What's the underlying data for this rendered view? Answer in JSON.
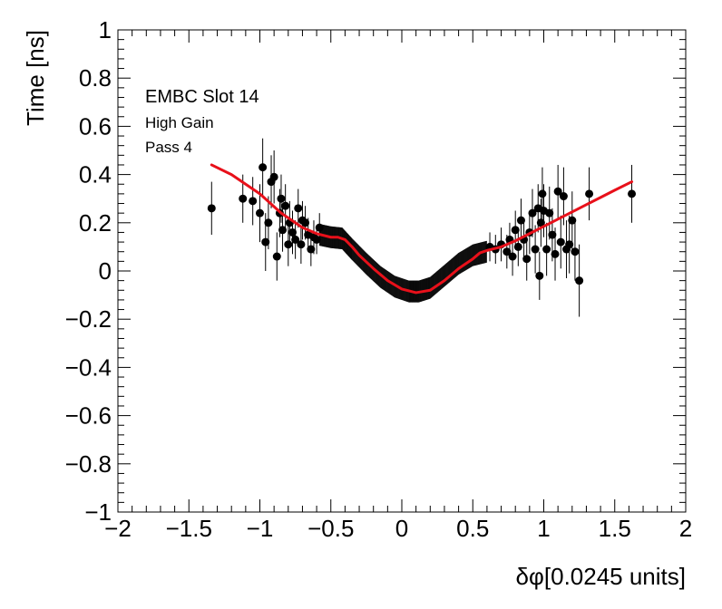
{
  "chart_data": {
    "type": "scatter",
    "title": "",
    "xlabel": "δφ[0.0245 units]",
    "ylabel": "Time [ns]",
    "xlim": [
      -2,
      2
    ],
    "ylim": [
      -1,
      1
    ],
    "x_ticks": [
      -2,
      -1.5,
      -1,
      -0.5,
      0,
      0.5,
      1,
      1.5,
      2
    ],
    "x_tick_labels": [
      "−2",
      "−1.5",
      "−1",
      "−0.5",
      "0",
      "0.5",
      "1",
      "1.5",
      "2"
    ],
    "y_ticks": [
      -1,
      -0.8,
      -0.6,
      -0.4,
      -0.2,
      0,
      0.2,
      0.4,
      0.6,
      0.8,
      1
    ],
    "y_tick_labels": [
      "−1",
      "−0.8",
      "−0.6",
      "−0.4",
      "−0.2",
      "0",
      "0.2",
      "0.4",
      "0.6",
      "0.8",
      "1"
    ],
    "grid": false,
    "annotations": [
      "EMBC Slot 14",
      "High Gain",
      "Pass 4"
    ],
    "colors": {
      "points": "#000000",
      "fit": "#e8101a",
      "frame": "#000000"
    },
    "series": [
      {
        "type": "scatter_errorbars",
        "points": [
          {
            "x": -1.34,
            "y": 0.26,
            "err": 0.11
          },
          {
            "x": -1.12,
            "y": 0.3,
            "err": 0.1
          },
          {
            "x": -1.05,
            "y": 0.29,
            "err": 0.1
          },
          {
            "x": -1.0,
            "y": 0.24,
            "err": 0.12
          },
          {
            "x": -0.98,
            "y": 0.43,
            "err": 0.12
          },
          {
            "x": -0.96,
            "y": 0.12,
            "err": 0.12
          },
          {
            "x": -0.94,
            "y": 0.2,
            "err": 0.11
          },
          {
            "x": -0.92,
            "y": 0.37,
            "err": 0.11
          },
          {
            "x": -0.9,
            "y": 0.39,
            "err": 0.11
          },
          {
            "x": -0.88,
            "y": 0.06,
            "err": 0.1
          },
          {
            "x": -0.86,
            "y": 0.24,
            "err": 0.1
          },
          {
            "x": -0.85,
            "y": 0.3,
            "err": 0.1
          },
          {
            "x": -0.84,
            "y": 0.17,
            "err": 0.09
          },
          {
            "x": -0.82,
            "y": 0.27,
            "err": 0.09
          },
          {
            "x": -0.8,
            "y": 0.11,
            "err": 0.09
          },
          {
            "x": -0.79,
            "y": 0.2,
            "err": 0.09
          },
          {
            "x": -0.77,
            "y": 0.16,
            "err": 0.09
          },
          {
            "x": -0.75,
            "y": 0.13,
            "err": 0.08
          },
          {
            "x": -0.73,
            "y": 0.26,
            "err": 0.08
          },
          {
            "x": -0.71,
            "y": 0.11,
            "err": 0.08
          },
          {
            "x": -0.7,
            "y": 0.21,
            "err": 0.08
          },
          {
            "x": -0.68,
            "y": 0.2,
            "err": 0.07
          },
          {
            "x": -0.66,
            "y": 0.15,
            "err": 0.07
          },
          {
            "x": -0.64,
            "y": 0.09,
            "err": 0.07
          },
          {
            "x": -0.62,
            "y": 0.14,
            "err": 0.07
          },
          {
            "x": -0.6,
            "y": 0.13,
            "err": 0.06
          },
          {
            "x": -0.58,
            "y": 0.18,
            "err": 0.06
          },
          {
            "x": 0.62,
            "y": 0.1,
            "err": 0.06
          },
          {
            "x": 0.66,
            "y": 0.09,
            "err": 0.06
          },
          {
            "x": 0.7,
            "y": 0.11,
            "err": 0.07
          },
          {
            "x": 0.74,
            "y": 0.08,
            "err": 0.07
          },
          {
            "x": 0.76,
            "y": 0.13,
            "err": 0.07
          },
          {
            "x": 0.78,
            "y": 0.06,
            "err": 0.08
          },
          {
            "x": 0.8,
            "y": 0.17,
            "err": 0.08
          },
          {
            "x": 0.82,
            "y": 0.1,
            "err": 0.08
          },
          {
            "x": 0.84,
            "y": 0.21,
            "err": 0.09
          },
          {
            "x": 0.86,
            "y": 0.13,
            "err": 0.09
          },
          {
            "x": 0.88,
            "y": 0.05,
            "err": 0.09
          },
          {
            "x": 0.9,
            "y": 0.16,
            "err": 0.09
          },
          {
            "x": 0.92,
            "y": 0.24,
            "err": 0.1
          },
          {
            "x": 0.94,
            "y": 0.09,
            "err": 0.1
          },
          {
            "x": 0.96,
            "y": 0.26,
            "err": 0.1
          },
          {
            "x": 0.97,
            "y": -0.02,
            "err": 0.1
          },
          {
            "x": 0.98,
            "y": 0.2,
            "err": 0.1
          },
          {
            "x": 0.99,
            "y": 0.32,
            "err": 0.11
          },
          {
            "x": 1.0,
            "y": 0.25,
            "err": 0.11
          },
          {
            "x": 1.02,
            "y": 0.09,
            "err": 0.11
          },
          {
            "x": 1.04,
            "y": 0.24,
            "err": 0.11
          },
          {
            "x": 1.06,
            "y": 0.15,
            "err": 0.11
          },
          {
            "x": 1.08,
            "y": 0.07,
            "err": 0.11
          },
          {
            "x": 1.1,
            "y": 0.33,
            "err": 0.11
          },
          {
            "x": 1.12,
            "y": 0.12,
            "err": 0.11
          },
          {
            "x": 1.14,
            "y": 0.31,
            "err": 0.12
          },
          {
            "x": 1.16,
            "y": 0.09,
            "err": 0.12
          },
          {
            "x": 1.18,
            "y": 0.11,
            "err": 0.12
          },
          {
            "x": 1.2,
            "y": 0.21,
            "err": 0.12
          },
          {
            "x": 1.22,
            "y": 0.08,
            "err": 0.12
          },
          {
            "x": 1.25,
            "y": -0.04,
            "err": 0.15
          },
          {
            "x": 1.32,
            "y": 0.32,
            "err": 0.11
          },
          {
            "x": 1.62,
            "y": 0.32,
            "err": 0.12
          }
        ]
      },
      {
        "type": "band",
        "x": [
          -0.58,
          -0.5,
          -0.42,
          -0.35,
          -0.25,
          -0.15,
          -0.05,
          0.05,
          0.12,
          0.2,
          0.3,
          0.4,
          0.5,
          0.6
        ],
        "y": [
          0.15,
          0.14,
          0.135,
          0.09,
          0.03,
          -0.025,
          -0.065,
          -0.085,
          -0.085,
          -0.07,
          -0.02,
          0.03,
          0.065,
          0.08
        ],
        "err": [
          0.045,
          0.045,
          0.045,
          0.045,
          0.045,
          0.045,
          0.045,
          0.045,
          0.045,
          0.045,
          0.045,
          0.045,
          0.045,
          0.045
        ]
      },
      {
        "type": "fit_line",
        "x": [
          -1.34,
          -1.2,
          -1.0,
          -0.85,
          -0.7,
          -0.6,
          -0.5,
          -0.45,
          -0.4,
          -0.35,
          -0.3,
          -0.2,
          -0.1,
          0.0,
          0.1,
          0.2,
          0.3,
          0.4,
          0.5,
          0.55,
          0.6,
          0.7,
          0.8,
          0.9,
          1.0,
          1.1,
          1.2,
          1.3,
          1.4,
          1.5,
          1.62
        ],
        "y": [
          0.44,
          0.4,
          0.32,
          0.24,
          0.18,
          0.155,
          0.14,
          0.14,
          0.13,
          0.1,
          0.065,
          0.01,
          -0.04,
          -0.075,
          -0.09,
          -0.08,
          -0.04,
          0.01,
          0.05,
          0.075,
          0.085,
          0.1,
          0.125,
          0.155,
          0.185,
          0.215,
          0.245,
          0.275,
          0.305,
          0.335,
          0.37
        ]
      }
    ]
  }
}
